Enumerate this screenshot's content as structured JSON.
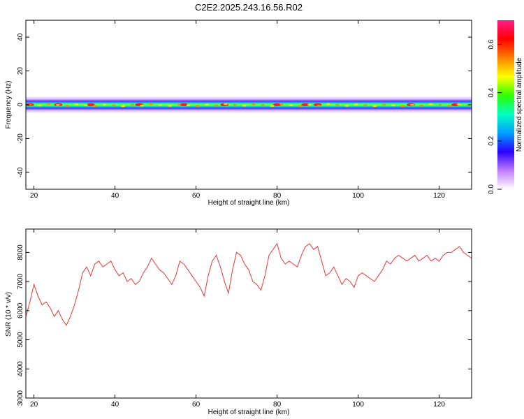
{
  "figure_title": "C2E2.2025.243.16.56.R02",
  "chart_data": [
    {
      "type": "heatmap",
      "xlabel": "Height of straight line (km)",
      "ylabel": "Frequency (Hz)",
      "xlim": [
        18,
        128
      ],
      "ylim": [
        -50,
        50
      ],
      "x_ticks": [
        20,
        40,
        60,
        80,
        100,
        120
      ],
      "y_ticks": [
        -40,
        -20,
        0,
        20,
        40
      ],
      "band_center_hz": 0,
      "band_half_width_hz": 4,
      "colorbar": {
        "label": "Normalized spectral amplitude",
        "range": [
          0.0,
          0.7
        ],
        "ticks": [
          "0.0",
          "0.2",
          "0.4",
          "0.6"
        ],
        "colors": [
          "#ffffff",
          "#c07cff",
          "#2a00ff",
          "#00a0ff",
          "#00ffc0",
          "#30ff00",
          "#ffff00",
          "#ff8000",
          "#ff0000",
          "#ff1a8a"
        ]
      },
      "peak_heights_km": [
        19,
        26,
        34,
        46,
        57,
        67,
        80,
        87,
        90,
        113,
        124
      ]
    },
    {
      "type": "line",
      "xlabel": "Height of straight line (km)",
      "ylabel": "SNR (10 * v/v)",
      "xlim": [
        18,
        128
      ],
      "ylim": [
        3000,
        8800
      ],
      "x_ticks": [
        20,
        40,
        60,
        80,
        100,
        120
      ],
      "y_ticks": [
        3000,
        4000,
        5000,
        6000,
        7000,
        8000
      ],
      "series_color": "#ee3333",
      "series": [
        {
          "values_x": [
            18,
            19,
            20,
            21,
            22,
            23,
            24,
            25,
            26,
            27,
            28,
            29,
            30,
            31,
            32,
            33,
            34,
            35,
            36,
            37,
            38,
            39,
            40,
            41,
            42,
            43,
            44,
            45,
            46,
            47,
            48,
            49,
            50,
            51,
            52,
            53,
            54,
            55,
            56,
            57,
            58,
            59,
            60,
            61,
            62,
            63,
            64,
            65,
            66,
            67,
            68,
            69,
            70,
            71,
            72,
            73,
            74,
            75,
            76,
            77,
            78,
            79,
            80,
            81,
            82,
            83,
            84,
            85,
            86,
            87,
            88,
            89,
            90,
            91,
            92,
            93,
            94,
            95,
            96,
            97,
            98,
            99,
            100,
            101,
            102,
            103,
            104,
            105,
            106,
            107,
            108,
            109,
            110,
            111,
            112,
            113,
            114,
            115,
            116,
            117,
            118,
            119,
            120,
            121,
            122,
            123,
            124,
            125,
            126,
            127,
            128
          ],
          "values_y": [
            5800,
            6300,
            6900,
            6500,
            6200,
            6300,
            6100,
            5800,
            6000,
            5700,
            5500,
            5800,
            6200,
            6700,
            7300,
            7500,
            7200,
            7600,
            7700,
            7500,
            7600,
            7700,
            7400,
            7200,
            7300,
            7000,
            7100,
            6900,
            7000,
            7300,
            7500,
            7800,
            7600,
            7400,
            7300,
            7100,
            6900,
            7200,
            7700,
            7600,
            7400,
            7200,
            7000,
            6800,
            6500,
            7200,
            7700,
            7900,
            7500,
            7000,
            6600,
            7400,
            8000,
            7900,
            7600,
            7400,
            7000,
            6900,
            6700,
            7200,
            7900,
            8100,
            8300,
            7800,
            7600,
            7700,
            7600,
            7500,
            7900,
            8200,
            8300,
            8100,
            8200,
            7700,
            7200,
            7300,
            7500,
            7200,
            6900,
            7100,
            7000,
            6800,
            7200,
            7300,
            7200,
            7100,
            7000,
            7200,
            7400,
            7700,
            7600,
            7800,
            7900,
            7800,
            7700,
            7800,
            7900,
            7700,
            7800,
            7900,
            7700,
            7800,
            7700,
            7900,
            8000,
            8000,
            8100,
            8200,
            8000,
            7900,
            7800
          ]
        }
      ]
    }
  ]
}
